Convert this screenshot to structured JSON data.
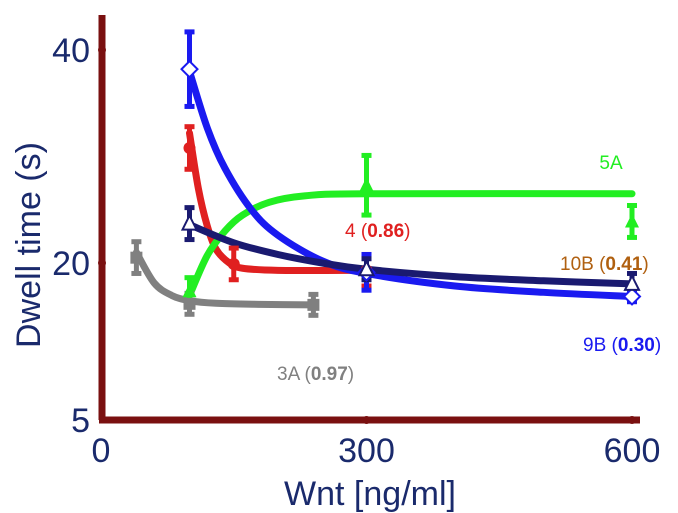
{
  "chart_data": {
    "type": "line",
    "xlabel": "Wnt [ng/ml]",
    "ylabel": "Dwell time (s)",
    "x_ticks": [
      0,
      300,
      600
    ],
    "y_ticks": [
      5,
      20,
      40
    ],
    "xlim": [
      0,
      620
    ],
    "ylim": [
      5,
      43
    ],
    "grid": false,
    "colors": {
      "axis": "#7a1010",
      "text": "#1a2a6c"
    },
    "series": [
      {
        "name": "3A",
        "value": "0.97",
        "color": "#808080",
        "marker": "square",
        "points": [
          {
            "x": 40,
            "y": 20.5,
            "err": 1.5
          },
          {
            "x": 100,
            "y": 16.1,
            "err": 1.0
          },
          {
            "x": 240,
            "y": 16.0,
            "err": 1.0
          }
        ],
        "fit": [
          [
            40,
            21.0
          ],
          [
            60,
            18.1
          ],
          [
            80,
            16.9
          ],
          [
            100,
            16.4
          ],
          [
            130,
            16.15
          ],
          [
            180,
            16.05
          ],
          [
            240,
            16.0
          ]
        ]
      },
      {
        "name": "4",
        "value": "0.86",
        "color": "#e02020",
        "marker": "circle",
        "points": [
          {
            "x": 100,
            "y": 30.8,
            "err": 2.0
          },
          {
            "x": 150,
            "y": 19.9,
            "err": 1.5
          },
          {
            "x": 300,
            "y": 19.3,
            "err": 1.5
          }
        ],
        "fit": [
          [
            100,
            32.2
          ],
          [
            110,
            27.0
          ],
          [
            120,
            23.5
          ],
          [
            130,
            21.3
          ],
          [
            145,
            20.0
          ],
          [
            160,
            19.5
          ],
          [
            200,
            19.3
          ],
          [
            300,
            19.3
          ]
        ]
      },
      {
        "name": "5A",
        "value": "",
        "color": "#22ee22",
        "marker": "triangle",
        "points": [
          {
            "x": 100,
            "y": 17.3,
            "err": 1.3
          },
          {
            "x": 300,
            "y": 27.3,
            "err": 2.8
          },
          {
            "x": 600,
            "y": 23.9,
            "err": 1.5
          }
        ],
        "fit": [
          [
            100,
            16.9
          ],
          [
            120,
            20.7
          ],
          [
            140,
            23.0
          ],
          [
            160,
            24.5
          ],
          [
            190,
            25.7
          ],
          [
            230,
            26.3
          ],
          [
            300,
            26.5
          ],
          [
            600,
            26.5
          ]
        ]
      },
      {
        "name": "9B",
        "value": "0.30",
        "color": "#1a1af0",
        "marker": "diamond",
        "points": [
          {
            "x": 100,
            "y": 38.2,
            "err": 3.5
          },
          {
            "x": 300,
            "y": 19.1,
            "err": 1.7
          },
          {
            "x": 600,
            "y": 16.8,
            "err": 0.5
          }
        ],
        "fit": [
          [
            100,
            38.0
          ],
          [
            120,
            32.7
          ],
          [
            140,
            28.9
          ],
          [
            170,
            25.0
          ],
          [
            200,
            22.6
          ],
          [
            250,
            20.2
          ],
          [
            300,
            19.0
          ],
          [
            400,
            17.8
          ],
          [
            500,
            17.2
          ],
          [
            600,
            16.8
          ]
        ]
      },
      {
        "name": "10B",
        "value": "0.41",
        "color": "#1a1a70",
        "marker": "open-triangle",
        "points": [
          {
            "x": 100,
            "y": 23.7,
            "err": 1.5
          },
          {
            "x": 300,
            "y": 19.4,
            "err": 1.0
          },
          {
            "x": 600,
            "y": 18.0,
            "err": 1.0
          }
        ],
        "fit": [
          [
            100,
            23.6
          ],
          [
            150,
            21.9
          ],
          [
            200,
            20.8
          ],
          [
            250,
            20.0
          ],
          [
            300,
            19.4
          ],
          [
            400,
            18.7
          ],
          [
            500,
            18.3
          ],
          [
            600,
            18.0
          ]
        ]
      }
    ],
    "annotations": [
      {
        "text": "5A",
        "prefix": "",
        "bold": ""
      },
      {
        "text": "4",
        "prefix": "4 (",
        "bold": "0.86"
      },
      {
        "text": "10B",
        "prefix": "10B (",
        "bold": "0.41"
      },
      {
        "text": "9B",
        "prefix": "9B (",
        "bold": "0.30"
      },
      {
        "text": "3A",
        "prefix": "3A (",
        "bold": "0.97"
      }
    ]
  }
}
